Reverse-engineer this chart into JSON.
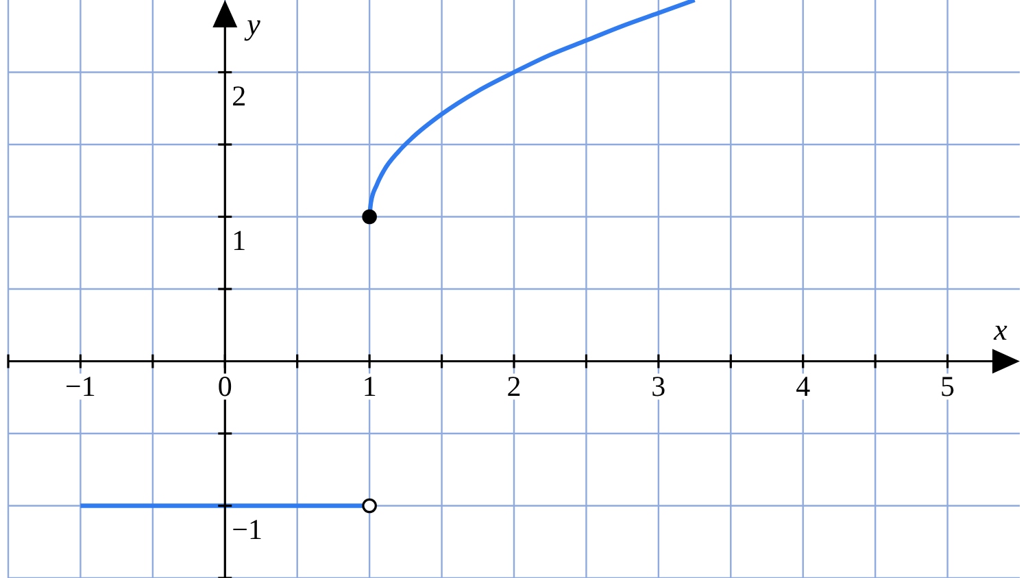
{
  "chart_data": {
    "type": "line",
    "xlabel": "x",
    "ylabel": "y",
    "xlim": [
      -1.5,
      5.5
    ],
    "ylim": [
      -1.5,
      2.5
    ],
    "xticks": [
      {
        "value": -1.5,
        "label": null
      },
      {
        "value": -1,
        "label": "−1"
      },
      {
        "value": -0.5,
        "label": null
      },
      0,
      {
        "value": 0.5,
        "label": null
      },
      1,
      {
        "value": 1.5,
        "label": null
      },
      2,
      {
        "value": 2.5,
        "label": null
      },
      3,
      {
        "value": 3.5,
        "label": null
      },
      4,
      {
        "value": 4.5,
        "label": null
      },
      5
    ],
    "yticks": [
      {
        "value": -1.5,
        "label": null
      },
      {
        "value": -1,
        "label": "−1"
      },
      {
        "value": -0.5,
        "label": null
      },
      {
        "value": 0.5,
        "label": null
      },
      1,
      {
        "value": 1.5,
        "label": null
      },
      2
    ],
    "grid": true,
    "series": [
      {
        "color": "#2f7bef",
        "x": [
          -1,
          1
        ],
        "values": [
          -1,
          -1
        ]
      },
      {
        "color": "#2f7bef",
        "x": [
          1,
          1.01,
          1.05,
          1.1,
          1.2,
          1.3,
          1.5,
          1.75,
          2,
          2.25,
          2.5,
          2.75,
          3,
          3.25
        ],
        "values": [
          1,
          1.1,
          1.22,
          1.32,
          1.45,
          1.55,
          1.71,
          1.87,
          2,
          2.12,
          2.22,
          2.32,
          2.41,
          2.5
        ]
      },
      {
        "type": "scatter",
        "marker": "circle",
        "color": "#ffffff",
        "x": [
          1
        ],
        "values": [
          -1
        ]
      },
      {
        "type": "scatter",
        "marker": "circle",
        "color": "#000000",
        "x": [
          1
        ],
        "values": [
          1
        ]
      }
    ]
  }
}
